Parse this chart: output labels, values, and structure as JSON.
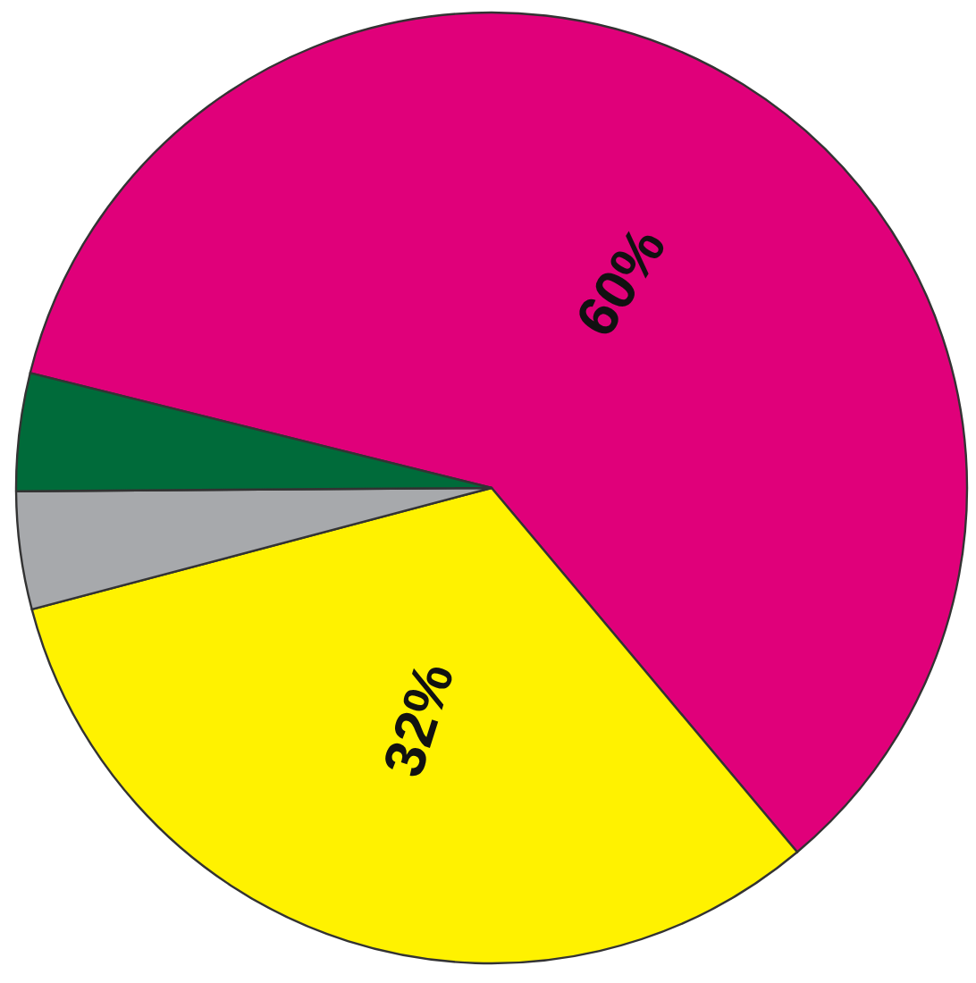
{
  "chart_data": {
    "type": "pie",
    "categories": [
      null,
      null,
      null,
      null
    ],
    "values": [
      60,
      32,
      4,
      4
    ],
    "colors": [
      "#e0007a",
      "#fff200",
      "#a7a9ac",
      "#006b3a"
    ],
    "value_labels": [
      "60%",
      "32%",
      null,
      null
    ]
  }
}
